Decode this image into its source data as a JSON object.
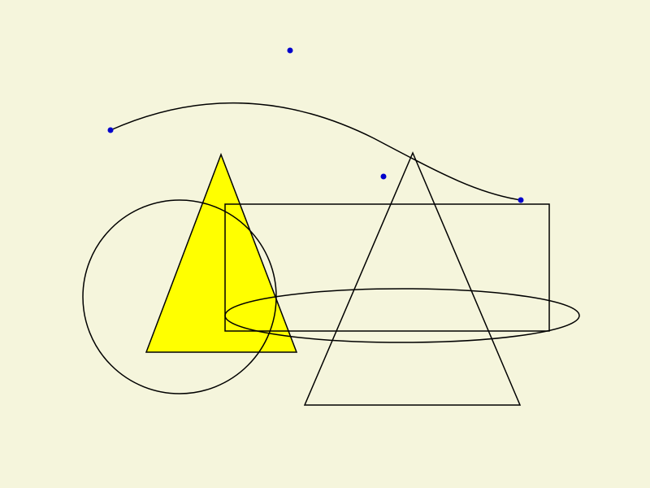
{
  "colors": {
    "background": "#F5F5DC",
    "stroke": "#000000",
    "triangle_fill": "#FFFF00",
    "point_fill": "#0000CC"
  },
  "shapes": [
    {
      "kind": "filled-triangle",
      "fill": "yellow"
    },
    {
      "kind": "outline-circle"
    },
    {
      "kind": "outline-rectangle"
    },
    {
      "kind": "outline-triangle"
    },
    {
      "kind": "outline-ellipse"
    },
    {
      "kind": "bezier-curve"
    }
  ],
  "control_points_count": 4
}
